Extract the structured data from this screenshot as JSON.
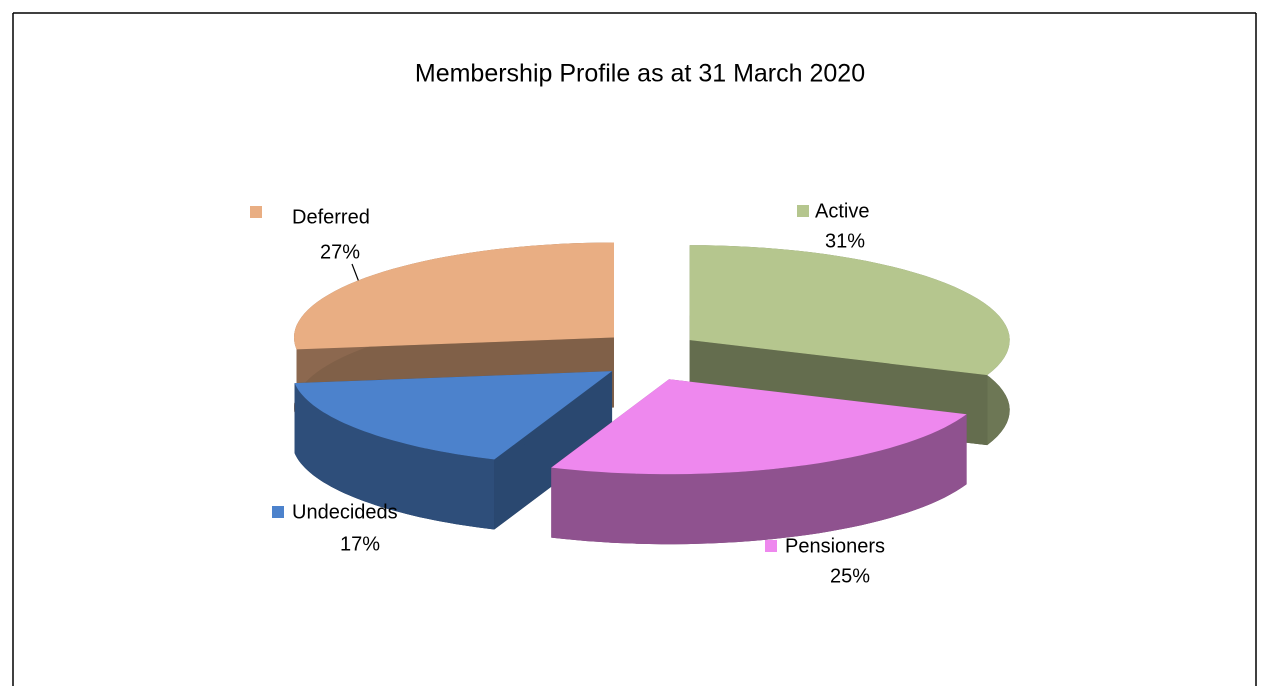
{
  "chart_data": {
    "type": "pie",
    "title": "Membership Profile as at 31 March 2020",
    "categories": [
      "Active",
      "Pensioners",
      "Undecideds",
      "Deferred"
    ],
    "values": [
      31,
      25,
      17,
      27
    ],
    "value_labels": [
      "31%",
      "25%",
      "17%",
      "27%"
    ],
    "colors": [
      "#b5c68e",
      "#ee88ee",
      "#4c82cc",
      "#e9ae83"
    ]
  }
}
